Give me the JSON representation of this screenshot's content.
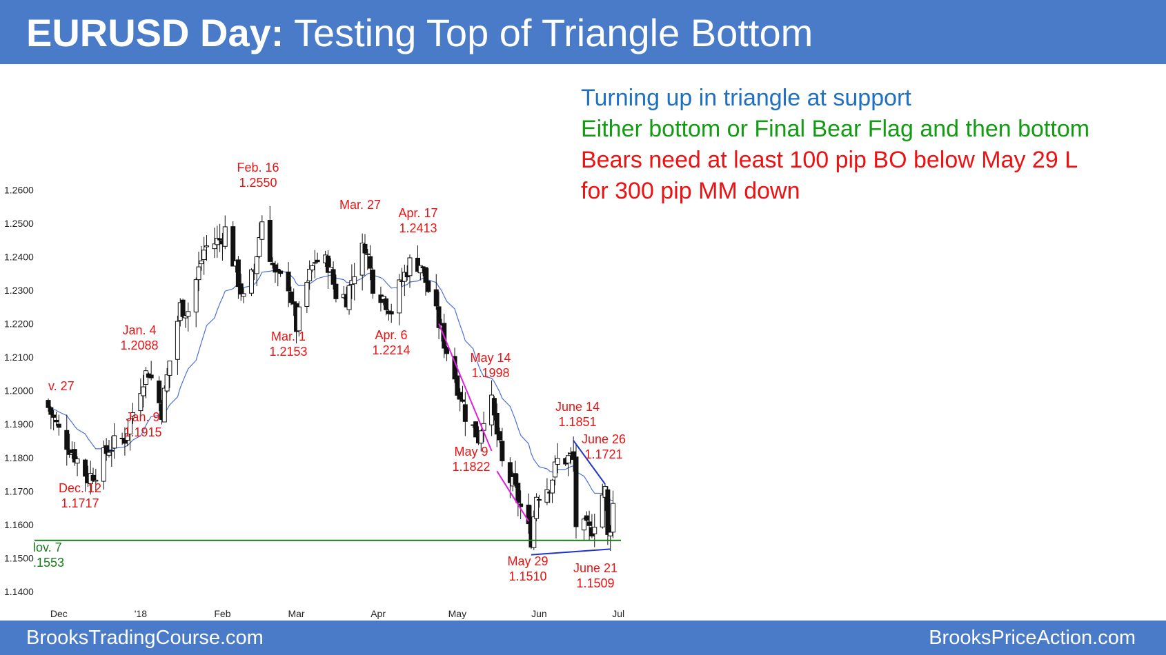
{
  "header": {
    "title_bold": "EURUSD Day:",
    "title_rest": "Testing Top of Triangle Bottom"
  },
  "notes": [
    {
      "text": "Turning up in triangle at support",
      "color": "#1f6fc2"
    },
    {
      "text": "Either bottom or Final Bear Flag and then bottom",
      "color": "#139b13"
    },
    {
      "text": "Bears need at least 100 pip BO below May 29 L",
      "color": "#ee1111"
    },
    {
      "text": "for 300 pip MM down",
      "color": "#ee1111"
    }
  ],
  "footer": {
    "left": "BrooksTradingCourse.com",
    "right": "BrooksPriceAction.com"
  },
  "colors": {
    "header_bg": "#4a7bc8",
    "annotation": "#ee1111",
    "support_line": "#1a7a1a",
    "moving_average": "#4a6fd8",
    "bear_channel": "#e020e0",
    "triangle": "#2233cc"
  },
  "chart_data": {
    "type": "candlestick",
    "symbol": "EURUSD",
    "timeframe": "Day",
    "ylim": [
      1.14,
      1.265
    ],
    "yticks": [
      "1.2600",
      "1.2500",
      "1.2400",
      "1.2300",
      "1.2200",
      "1.2100",
      "1.2000",
      "1.1900",
      "1.1800",
      "1.1700",
      "1.1600",
      "1.1500",
      "1.1400"
    ],
    "xticks": [
      "Dec",
      "'18",
      "Feb",
      "Mar",
      "Apr",
      "May",
      "Jun",
      "Jul"
    ],
    "grid": false,
    "moving_average": "20-bar EMA",
    "support_line": 1.1553,
    "labels": [
      {
        "date": "Nov 27",
        "text": "v. 27",
        "value": ""
      },
      {
        "date": "Nov 7",
        "text": "lov. 7",
        "value": ".1553"
      },
      {
        "date": "Dec 12",
        "text": "Dec. 12",
        "value": "1.1717"
      },
      {
        "date": "Jan 4",
        "text": "Jan. 4",
        "value": "1.2088"
      },
      {
        "date": "Jan 9",
        "text": "Jan. 9",
        "value": "1.1915"
      },
      {
        "date": "Feb 16",
        "text": "Feb. 16",
        "value": "1.2550"
      },
      {
        "date": "Mar 1",
        "text": "Mar. 1",
        "value": "1.2153"
      },
      {
        "date": "Mar 27",
        "text": "Mar. 27",
        "value": ""
      },
      {
        "date": "Apr 6",
        "text": "Apr. 6",
        "value": "1.2214"
      },
      {
        "date": "Apr 17",
        "text": "Apr. 17",
        "value": "1.2413"
      },
      {
        "date": "May 14",
        "text": "May 14",
        "value": "1.1998"
      },
      {
        "date": "May 9",
        "text": "May 9",
        "value": "1.1822"
      },
      {
        "date": "May 29",
        "text": "May 29",
        "value": "1.1510"
      },
      {
        "date": "June 14",
        "text": "June 14",
        "value": "1.1851"
      },
      {
        "date": "June 26",
        "text": "June 26",
        "value": "1.1721"
      },
      {
        "date": "June 21",
        "text": "June 21",
        "value": "1.1509"
      }
    ],
    "bear_channel_lines": [
      {
        "from": {
          "date": "Apr 24",
          "price": 1.22
        },
        "to": {
          "date": "May 14",
          "price": 1.182
        }
      },
      {
        "from": {
          "date": "May 16",
          "price": 1.176
        },
        "to": {
          "date": "May 28",
          "price": 1.161
        }
      }
    ],
    "triangle_lines": [
      {
        "from": {
          "date": "June 14",
          "price": 1.1851
        },
        "to": {
          "date": "June 26",
          "price": 1.1721
        }
      },
      {
        "from": {
          "date": "May 29",
          "price": 1.151
        },
        "to": {
          "date": "June 28",
          "price": 1.1527
        }
      }
    ],
    "waypoints": [
      [
        "Nov 27",
        1.195
      ],
      [
        "Dec 1",
        1.188
      ],
      [
        "Dec 6",
        1.182
      ],
      [
        "Dec 12",
        1.174
      ],
      [
        "Dec 15",
        1.176
      ],
      [
        "Dec 20",
        1.183
      ],
      [
        "Dec 26",
        1.186
      ],
      [
        "Jan 2",
        1.204
      ],
      [
        "Jan 4",
        1.206
      ],
      [
        "Jan 9",
        1.194
      ],
      [
        "Jan 12",
        1.209
      ],
      [
        "Jan 16",
        1.225
      ],
      [
        "Jan 19",
        1.224
      ],
      [
        "Jan 25",
        1.242
      ],
      [
        "Jan 26",
        1.243
      ],
      [
        "Jan 31",
        1.245
      ],
      [
        "Feb 2",
        1.248
      ],
      [
        "Feb 6",
        1.236
      ],
      [
        "Feb 9",
        1.227
      ],
      [
        "Feb 13",
        1.236
      ],
      [
        "Feb 16",
        1.251
      ],
      [
        "Feb 21",
        1.234
      ],
      [
        "Feb 26",
        1.232
      ],
      [
        "Mar 1",
        1.219
      ],
      [
        "Mar 5",
        1.232
      ],
      [
        "Mar 8",
        1.239
      ],
      [
        "Mar 13",
        1.238
      ],
      [
        "Mar 16",
        1.229
      ],
      [
        "Mar 20",
        1.228
      ],
      [
        "Mar 23",
        1.236
      ],
      [
        "Mar 27",
        1.244
      ],
      [
        "Mar 30",
        1.232
      ],
      [
        "Apr 3",
        1.228
      ],
      [
        "Apr 6",
        1.224
      ],
      [
        "Apr 10",
        1.233
      ],
      [
        "Apr 13",
        1.238
      ],
      [
        "Apr 17",
        1.238
      ],
      [
        "Apr 20",
        1.23
      ],
      [
        "Apr 24",
        1.22
      ],
      [
        "Apr 27",
        1.212
      ],
      [
        "May 2",
        1.199
      ],
      [
        "May 4",
        1.193
      ],
      [
        "May 9",
        1.186
      ],
      [
        "May 11",
        1.193
      ],
      [
        "May 14",
        1.196
      ],
      [
        "May 18",
        1.178
      ],
      [
        "May 23",
        1.17
      ],
      [
        "May 25",
        1.165
      ],
      [
        "May 29",
        1.156
      ],
      [
        "May 31",
        1.169
      ],
      [
        "Jun 5",
        1.172
      ],
      [
        "Jun 8",
        1.179
      ],
      [
        "Jun 13",
        1.18
      ],
      [
        "Jun 14",
        1.179
      ],
      [
        "Jun 15",
        1.16
      ],
      [
        "Jun 20",
        1.158
      ],
      [
        "Jun 21",
        1.159
      ],
      [
        "Jun 25",
        1.169
      ],
      [
        "Jun 26",
        1.17
      ],
      [
        "Jun 27",
        1.156
      ],
      [
        "Jun 28",
        1.16
      ],
      [
        "Jun 29",
        1.166
      ]
    ]
  }
}
